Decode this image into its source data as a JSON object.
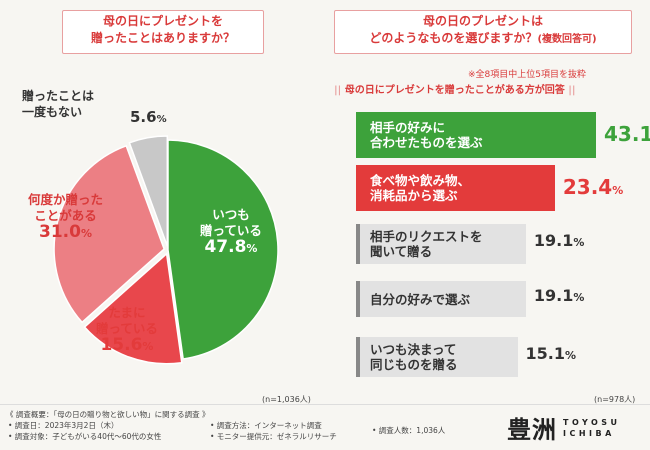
{
  "left_title": {
    "line1": "母の日にプレゼントを",
    "line2": "贈ったことはありますか？"
  },
  "right_title": {
    "line1": "母の日のプレゼントは",
    "line2": "どのようなものを選びますか？",
    "suffix": "(複数回答可)"
  },
  "right_note": "※全8項目中上位5項目を抜粋",
  "right_subtitle": "母の日にプレゼントを贈ったことがある方が回答",
  "colors": {
    "accent_red": "#e33b3b",
    "accent_green": "#3da23b",
    "gray": "#c8c8c8"
  },
  "chart_data": [
    {
      "type": "pie",
      "title": "母の日にプレゼントを贈ったことはありますか？",
      "n_label": "(n=1,036人)",
      "slices": [
        {
          "label_line1": "いつも",
          "label_line2": "贈っている",
          "label": "いつも贈っている",
          "value": 47.8,
          "value_text": "47.8",
          "color": "#3da23b"
        },
        {
          "label_line1": "たまに",
          "label_line2": "贈っている",
          "label": "たまに贈っている",
          "value": 15.6,
          "value_text": "15.6",
          "color": "#e8474c"
        },
        {
          "label_line1": "何度か贈った",
          "label_line2": "ことがある",
          "label": "何度か贈ったことがある",
          "value": 31.0,
          "value_text": "31.0",
          "color": "#ec7f84"
        },
        {
          "label_line1": "贈ったことは",
          "label_line2": "一度もない",
          "label": "贈ったことは一度もない",
          "value": 5.6,
          "value_text": "5.6",
          "color": "#c8c8c8"
        }
      ]
    },
    {
      "type": "bar",
      "orientation": "horizontal",
      "title": "母の日のプレゼントはどのようなものを選びますか？(複数回答可)",
      "n_label": "(n=978人)",
      "categories": [
        "相手の好みに合わせたものを選ぶ",
        "食べ物や飲み物、消耗品から選ぶ",
        "相手のリクエストを聞いて贈る",
        "自分の好みで選ぶ",
        "いつも決まって同じものを贈る"
      ],
      "bars": [
        {
          "line1": "相手の好みに",
          "line2": "合わせたものを選ぶ",
          "value": 43.1,
          "value_text": "43.1",
          "style": "green"
        },
        {
          "line1": "食べ物や飲み物、",
          "line2": "消耗品から選ぶ",
          "value": 23.4,
          "value_text": "23.4",
          "style": "red"
        },
        {
          "line1": "相手のリクエストを",
          "line2": "聞いて贈る",
          "value": 19.1,
          "value_text": "19.1",
          "style": "gray"
        },
        {
          "line1": "自分の好みで選ぶ",
          "line2": "",
          "value": 19.1,
          "value_text": "19.1",
          "style": "gray"
        },
        {
          "line1": "いつも決まって",
          "line2": "同じものを贈る",
          "value": 15.1,
          "value_text": "15.1",
          "style": "gray"
        }
      ],
      "unit": "%"
    }
  ],
  "footer": {
    "overview": "《 調査概要：「母の日の贈り物と欲しい物」に関する調査 》",
    "date": "• 調査日：2023年3月2日（木）",
    "target": "• 調査対象：子どもがいる40代〜60代の女性",
    "method": "• 調査方法：インターネット調査",
    "provider": "• モニター提供元：ゼネラルリサーチ",
    "count": "• 調査人数：1,036人"
  },
  "logo": {
    "kanji": "豊洲",
    "line1": "TOYOSU",
    "line2": "ICHIBA"
  }
}
